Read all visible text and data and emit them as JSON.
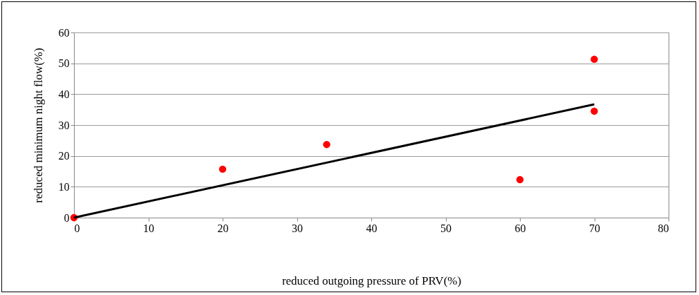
{
  "chart_data": {
    "type": "scatter",
    "xlabel": "reduced outgoing pressure of PRV(%)",
    "ylabel": "reduced minimum night flow(%)",
    "xlim": [
      0,
      80
    ],
    "xticks": [
      0,
      10,
      20,
      30,
      40,
      50,
      60,
      70,
      80
    ],
    "ylim": [
      0,
      60
    ],
    "yticks": [
      0,
      10,
      20,
      30,
      40,
      50,
      60
    ],
    "grid": "y",
    "series": [
      {
        "marker": "circle",
        "color": "#ff0000",
        "x": [
          0,
          20,
          34,
          60,
          70,
          70
        ],
        "values": [
          0,
          15.7,
          23.7,
          12.3,
          51.3,
          34.5
        ]
      },
      {
        "type": "line",
        "color": "#000000",
        "x": [
          0,
          70
        ],
        "values": [
          0,
          36.7
        ],
        "marker": "none",
        "line_style": "solid"
      }
    ]
  }
}
